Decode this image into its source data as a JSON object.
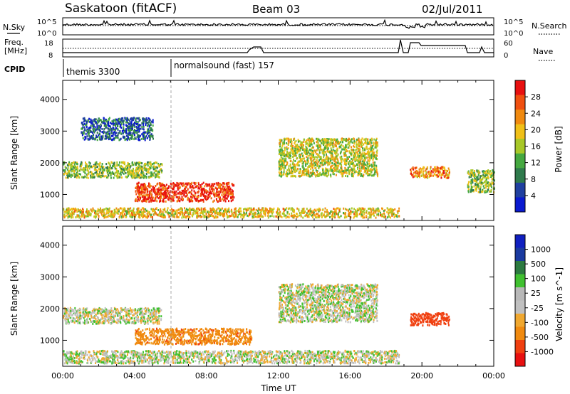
{
  "header": {
    "station": "Saskatoon (fitACF)",
    "beam": "Beam 03",
    "date": "02/Jul/2011"
  },
  "noise_panel": {
    "left_label": "N.Sky",
    "right_label": "N.Search",
    "left_ticks": [
      "10^5",
      "10^0"
    ],
    "right_ticks": [
      "10^5",
      "10^0"
    ]
  },
  "freq_panel": {
    "left_label_1": "Freq.",
    "left_label_2": "[MHz]",
    "right_label": "Nave",
    "left_ticks": [
      "18",
      "8"
    ],
    "right_ticks": [
      "60",
      "0"
    ]
  },
  "cpid_panel": {
    "label": "CPID",
    "segments": [
      {
        "start_hour": 0.0,
        "text": "themis 3300"
      },
      {
        "start_hour": 6.0,
        "text": "normalsound (fast) 157"
      }
    ]
  },
  "colors": {
    "power_scale": [
      "#0a1ad0",
      "#2040a0",
      "#2f7a4c",
      "#45a840",
      "#a8c828",
      "#f0c018",
      "#f08a10",
      "#f05010",
      "#e81010"
    ],
    "velocity_scale": [
      "#e81010",
      "#f04010",
      "#f08a10",
      "#f0a830",
      "#c0c0c0",
      "#b8b8b8",
      "#40c030",
      "#2c7a40",
      "#1a3aa0",
      "#1020c0"
    ]
  },
  "chart_data": [
    {
      "type": "heatmap",
      "title": "",
      "ylabel": "Slant Range [km]",
      "xlabel": "",
      "xlim_hours": [
        0,
        24
      ],
      "ylim_km": [
        180,
        4600
      ],
      "yticks": [
        "1000",
        "2000",
        "3000",
        "4000"
      ],
      "colorbar": {
        "label": "Power [dB]",
        "ticks": [
          "4",
          "8",
          "12",
          "16",
          "20",
          "24",
          "28"
        ],
        "range": [
          0,
          30
        ]
      },
      "features": [
        {
          "t0": 0.0,
          "t1": 5.5,
          "r0": 1550,
          "r1": 2050,
          "value_db": 14
        },
        {
          "t0": 1.0,
          "t1": 5.0,
          "r0": 2750,
          "r1": 3450,
          "value_db": 6
        },
        {
          "t0": 4.0,
          "t1": 9.5,
          "r0": 800,
          "r1": 1400,
          "value_db": 27
        },
        {
          "t0": 0.0,
          "t1": 18.7,
          "r0": 300,
          "r1": 600,
          "value_db": 18
        },
        {
          "t0": 12.0,
          "t1": 17.5,
          "r0": 1600,
          "r1": 2800,
          "value_db": 16
        },
        {
          "t0": 19.3,
          "t1": 21.5,
          "r0": 1550,
          "r1": 1900,
          "value_db": 22
        },
        {
          "t0": 22.5,
          "t1": 24.0,
          "r0": 1100,
          "r1": 1800,
          "value_db": 14
        }
      ]
    },
    {
      "type": "heatmap",
      "title": "",
      "ylabel": "Slant Range [km]",
      "xlabel": "Time UT",
      "xlim_hours": [
        0,
        24
      ],
      "ylim_km": [
        180,
        4600
      ],
      "yticks": [
        "1000",
        "2000",
        "3000",
        "4000"
      ],
      "xticks": [
        "00:00",
        "04:00",
        "08:00",
        "12:00",
        "16:00",
        "20:00",
        "00:00"
      ],
      "colorbar": {
        "label": "Velocity [m s^-1]",
        "ticks": [
          "1000",
          "500",
          "100",
          "25",
          "-25",
          "-100",
          "-500",
          "-1000"
        ],
        "range": [
          -1000,
          1000
        ]
      },
      "features": [
        {
          "t0": 0.0,
          "t1": 5.5,
          "r0": 1550,
          "r1": 2050,
          "value_ms": 0
        },
        {
          "t0": 4.0,
          "t1": 10.5,
          "r0": 900,
          "r1": 1400,
          "value_ms": -150
        },
        {
          "t0": 12.0,
          "t1": 17.5,
          "r0": 1600,
          "r1": 2800,
          "value_ms": 0
        },
        {
          "t0": 19.3,
          "t1": 21.5,
          "r0": 1500,
          "r1": 1900,
          "value_ms": -400
        },
        {
          "t0": 0.0,
          "t1": 18.7,
          "r0": 300,
          "r1": 700,
          "value_ms": 0
        }
      ]
    }
  ]
}
